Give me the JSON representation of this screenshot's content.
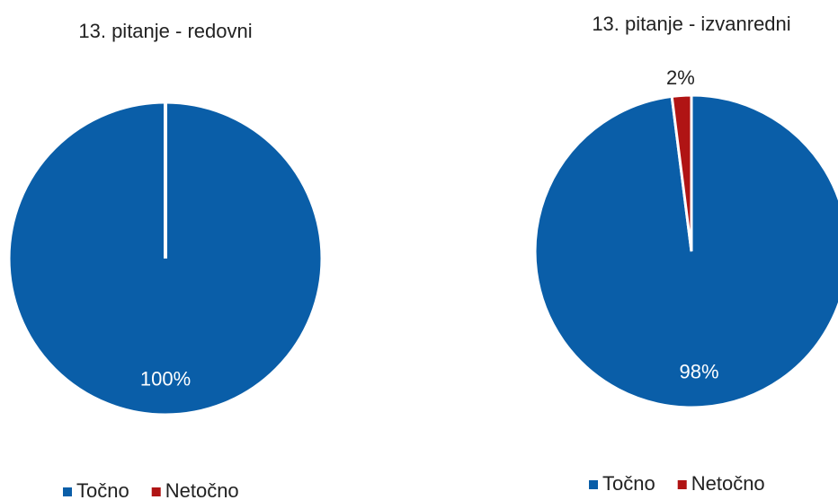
{
  "chart_data": [
    {
      "type": "pie",
      "title": "13. pitanje - redovni",
      "categories": [
        "Točno",
        "Netočno"
      ],
      "values": [
        100,
        0
      ],
      "value_labels": [
        "100%",
        null
      ],
      "colors": [
        "#0a5ea8",
        "#b01414"
      ]
    },
    {
      "type": "pie",
      "title": "13. pitanje - izvanredni",
      "categories": [
        "Točno",
        "Netočno"
      ],
      "values": [
        98,
        2
      ],
      "value_labels": [
        "98%",
        "2%"
      ],
      "colors": [
        "#0a5ea8",
        "#b01414"
      ]
    }
  ]
}
